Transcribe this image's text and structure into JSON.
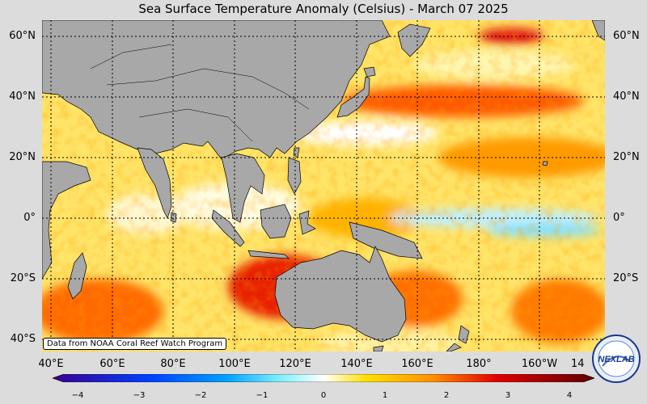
{
  "title": "Sea Surface Temperature Anomaly (Celsius) - March 07 2025",
  "credit": "Data from NOAA Coral Reef Watch Program",
  "lat_labels": [
    "60°N",
    "40°N",
    "20°N",
    "0°",
    "20°S",
    "40°S"
  ],
  "lon_labels": [
    "40°E",
    "60°E",
    "80°E",
    "100°E",
    "120°E",
    "140°E",
    "160°E",
    "180°",
    "160°W",
    "14"
  ],
  "colorbar": {
    "ticks": [
      "−4",
      "−3",
      "−2",
      "−1",
      "0",
      "1",
      "2",
      "3",
      "4"
    ],
    "min": -4,
    "max": 4,
    "colors": [
      "#3a0090",
      "#0050ff",
      "#00c8ff",
      "#ffffff",
      "#ffd000",
      "#ff8000",
      "#e00000",
      "#700000"
    ]
  },
  "logo": {
    "text": "NEXLAB"
  },
  "colors": {
    "land": "#a8a8a8",
    "ocean_warm": "#ffd000",
    "ocean_hot": "#ff4000",
    "ocean_neutral": "#fff6c0"
  }
}
